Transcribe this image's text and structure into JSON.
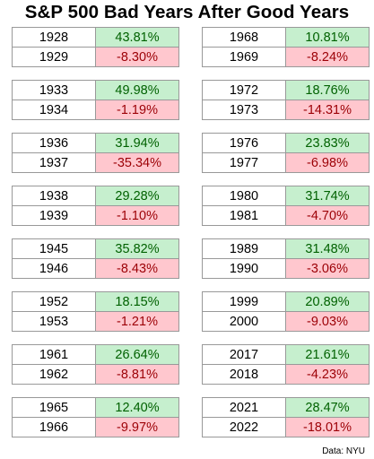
{
  "chart_data": {
    "type": "table",
    "title": "S&P 500 Bad Years After Good Years",
    "source": "Data: NYU",
    "pairs": [
      {
        "good_year": "1928",
        "good_return": "43.81%",
        "bad_year": "1929",
        "bad_return": "-8.30%"
      },
      {
        "good_year": "1933",
        "good_return": "49.98%",
        "bad_year": "1934",
        "bad_return": "-1.19%"
      },
      {
        "good_year": "1936",
        "good_return": "31.94%",
        "bad_year": "1937",
        "bad_return": "-35.34%"
      },
      {
        "good_year": "1938",
        "good_return": "29.28%",
        "bad_year": "1939",
        "bad_return": "-1.10%"
      },
      {
        "good_year": "1945",
        "good_return": "35.82%",
        "bad_year": "1946",
        "bad_return": "-8.43%"
      },
      {
        "good_year": "1952",
        "good_return": "18.15%",
        "bad_year": "1953",
        "bad_return": "-1.21%"
      },
      {
        "good_year": "1961",
        "good_return": "26.64%",
        "bad_year": "1962",
        "bad_return": "-8.81%"
      },
      {
        "good_year": "1965",
        "good_return": "12.40%",
        "bad_year": "1966",
        "bad_return": "-9.97%"
      },
      {
        "good_year": "1968",
        "good_return": "10.81%",
        "bad_year": "1969",
        "bad_return": "-8.24%"
      },
      {
        "good_year": "1972",
        "good_return": "18.76%",
        "bad_year": "1973",
        "bad_return": "-14.31%"
      },
      {
        "good_year": "1976",
        "good_return": "23.83%",
        "bad_year": "1977",
        "bad_return": "-6.98%"
      },
      {
        "good_year": "1980",
        "good_return": "31.74%",
        "bad_year": "1981",
        "bad_return": "-4.70%"
      },
      {
        "good_year": "1989",
        "good_return": "31.48%",
        "bad_year": "1990",
        "bad_return": "-3.06%"
      },
      {
        "good_year": "1999",
        "good_return": "20.89%",
        "bad_year": "2000",
        "bad_return": "-9.03%"
      },
      {
        "good_year": "2017",
        "good_return": "21.61%",
        "bad_year": "2018",
        "bad_return": "-4.23%"
      },
      {
        "good_year": "2021",
        "good_return": "28.47%",
        "bad_year": "2022",
        "bad_return": "-18.01%"
      }
    ],
    "colors": {
      "positive_fill": "#c6efce",
      "positive_text": "#006100",
      "negative_fill": "#ffc7ce",
      "negative_text": "#9c0006",
      "border": "#999999"
    }
  }
}
